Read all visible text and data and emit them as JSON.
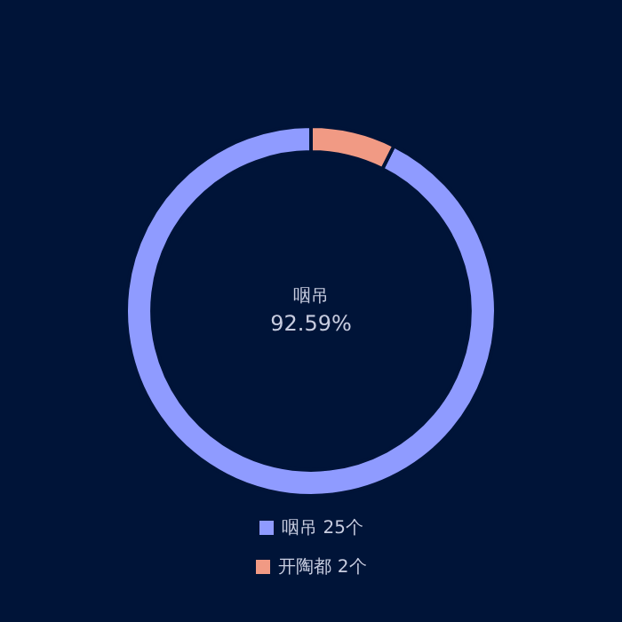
{
  "chart_data": {
    "type": "donut",
    "categories": [
      "咽吊",
      "开陶都"
    ],
    "values": [
      25,
      2
    ],
    "colors": [
      "#8f9bff",
      "#f19a84"
    ],
    "value_labels": [
      "25个",
      "2个"
    ],
    "annotations": [
      "咽吊",
      "92.59%"
    ],
    "legend": "bottom"
  }
}
